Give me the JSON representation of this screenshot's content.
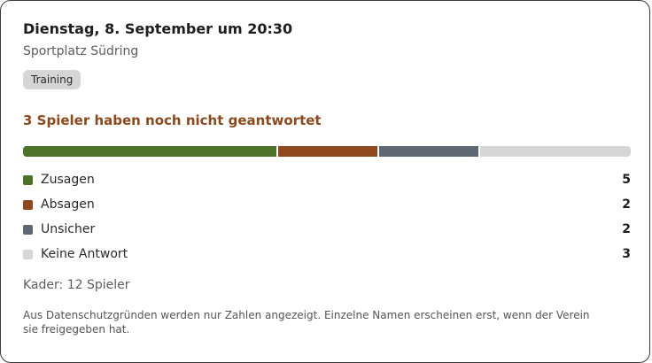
{
  "event": {
    "title": "Dienstag, 8. September um 20:30",
    "location": "Sportplatz Südring",
    "type_badge": "Training"
  },
  "responses": {
    "pending_text": "3 Spieler haben noch nicht geantwortet",
    "total": 12,
    "items": [
      {
        "label": "Zusagen",
        "count": 5,
        "color": "#4e7328"
      },
      {
        "label": "Absagen",
        "count": 2,
        "color": "#8e4a1e"
      },
      {
        "label": "Unsicher",
        "count": 2,
        "color": "#5e6872"
      },
      {
        "label": "Keine Antwort",
        "count": 3,
        "color": "#d6d6d6"
      }
    ]
  },
  "squad_text": "Kader: 12 Spieler",
  "privacy_note": "Aus Datenschutzgründen werden nur Zahlen angezeigt. Einzelne Namen erscheinen erst, wenn der Verein sie freigegeben hat."
}
